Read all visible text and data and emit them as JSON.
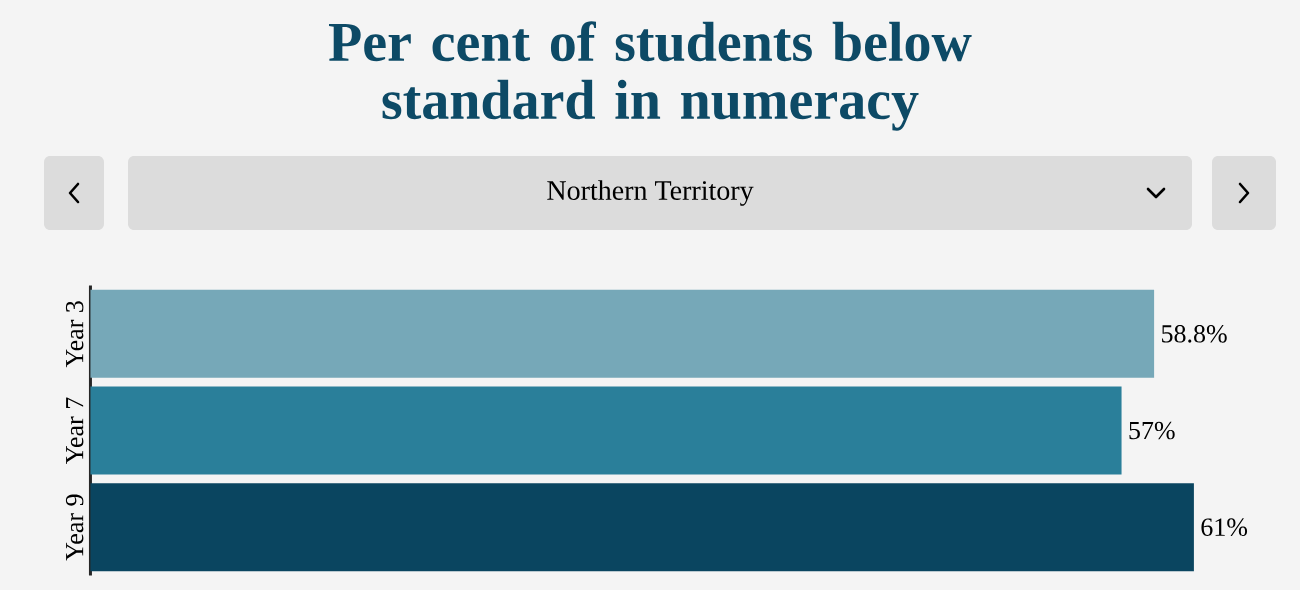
{
  "chart_data": {
    "type": "bar",
    "orientation": "horizontal",
    "title": "Per cent of students below standard in numeracy",
    "subtitle": "Northern Territory",
    "categories": [
      "Year 3",
      "Year 7",
      "Year 9"
    ],
    "values": [
      58.8,
      57,
      61
    ],
    "colors": [
      "#76a8b8",
      "#2a7f9a",
      "#0a4560"
    ],
    "value_labels": [
      "58.8%",
      "57%",
      "61%"
    ],
    "tick_labels": "y"
  }
}
